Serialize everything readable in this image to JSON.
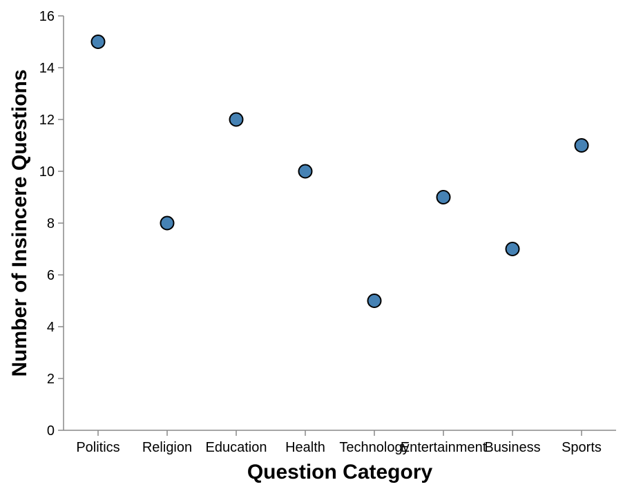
{
  "chart_data": {
    "type": "scatter",
    "categories": [
      "Politics",
      "Religion",
      "Education",
      "Health",
      "Technology",
      "Entertainment",
      "Business",
      "Sports"
    ],
    "values": [
      15,
      8,
      12,
      10,
      5,
      9,
      7,
      11
    ],
    "xlabel": "Question Category",
    "ylabel": "Number of Insincere Questions",
    "ylim": [
      0,
      16
    ],
    "yticks": [
      0,
      2,
      4,
      6,
      8,
      10,
      12,
      14,
      16
    ],
    "grid": false,
    "point_color": "#4682b4",
    "point_stroke": "#000000",
    "axis_color": "#888888"
  }
}
